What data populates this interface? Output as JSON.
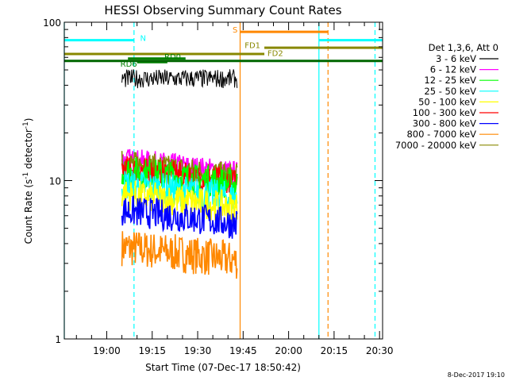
{
  "chart_data": {
    "type": "line",
    "title": "HESSI Observing Summary Count Rates",
    "xlabel": "Start Time (07-Dec-17 18:50:42)",
    "ylabel": "Count Rate (s",
    "ylabel_sup": "-1",
    "ylabel_tail": " detector",
    "ylabel_sup2": "-1",
    "ylabel_close": ")",
    "y_scale": "log",
    "ylim": [
      1,
      100
    ],
    "y_tick_labels": [
      {
        "value": 1,
        "label": "1"
      },
      {
        "value": 10,
        "label": "10"
      },
      {
        "value": 100,
        "label": "100"
      }
    ],
    "xlim_minutes": [
      -14,
      91
    ],
    "x_tick_labels": [
      {
        "t": 0,
        "label": "19:00"
      },
      {
        "t": 15,
        "label": "19:15"
      },
      {
        "t": 30,
        "label": "19:30"
      },
      {
        "t": 45,
        "label": "19:45"
      },
      {
        "t": 60,
        "label": "20:00"
      },
      {
        "t": 75,
        "label": "20:15"
      },
      {
        "t": 90,
        "label": "20:30"
      }
    ],
    "legend_title": "Det 1,3,6, Att 0",
    "series": [
      {
        "name": "3 - 6 keV",
        "color": "#000000",
        "level": 44,
        "spread": 0.06
      },
      {
        "name": "6 - 12 keV",
        "color": "#ff00ff",
        "level": 13.5,
        "spread": 0.08
      },
      {
        "name": "12 - 25 keV",
        "color": "#00ff00",
        "level": 11.5,
        "spread": 0.1
      },
      {
        "name": "25 - 50 keV",
        "color": "#00ffff",
        "level": 9.5,
        "spread": 0.1
      },
      {
        "name": "50 - 100 keV",
        "color": "#ffff00",
        "level": 8.2,
        "spread": 0.1
      },
      {
        "name": "100 - 300 keV",
        "color": "#ff0000",
        "level": 12,
        "spread": 0.08
      },
      {
        "name": "300 - 800 keV",
        "color": "#0000ff",
        "level": 6.5,
        "spread": 0.1
      },
      {
        "name": "800 - 7000 keV",
        "color": "#ff8800",
        "level": 3.8,
        "spread": 0.12
      },
      {
        "name": "7000 - 20000 keV",
        "color": "#888800",
        "level": 13,
        "spread": 0.08
      }
    ],
    "data_window_minutes": [
      5,
      43
    ],
    "vertical_lines": [
      {
        "t": -14,
        "color": "#00ffff",
        "style": "solid"
      },
      {
        "t": 9,
        "color": "#00ffff",
        "style": "dashed"
      },
      {
        "t": 44,
        "color": "#ff8800",
        "style": "solid"
      },
      {
        "t": 70,
        "color": "#00ffff",
        "style": "solid"
      },
      {
        "t": 73,
        "color": "#ff8800",
        "style": "dashed"
      },
      {
        "t": 88.5,
        "color": "#00ffff",
        "style": "dashed"
      }
    ],
    "flag_bars": [
      {
        "label": "N",
        "color": "#00ffff",
        "y": 77,
        "t0": -14,
        "t1": 9,
        "label_t": 11,
        "label_y": 80
      },
      {
        "label": "N",
        "color": "#00ffff",
        "y": 77,
        "t0": 70,
        "t1": 91,
        "label_t": null,
        "label_y": null
      },
      {
        "label": "S",
        "color": "#ff8800",
        "y": 87,
        "t0": 44,
        "t1": 73,
        "label_t": 41.5,
        "label_y": 90
      },
      {
        "label": "FD1",
        "color": "#888800",
        "y": 69,
        "t0": 52,
        "t1": 91,
        "label_t": 45.5,
        "label_y": 72
      },
      {
        "label": "FD2",
        "color": "#888800",
        "y": 63,
        "t0": -14,
        "t1": 52,
        "label_t": 53,
        "label_y": 64
      },
      {
        "label": "RD0",
        "color": "#008000",
        "y": 59,
        "t0": 7,
        "t1": 26,
        "label_t": 19,
        "label_y": 61
      },
      {
        "label": "RD6",
        "color": "#008000",
        "y": 56,
        "t0": 10,
        "t1": 20,
        "label_t": 4.5,
        "label_y": 55
      },
      {
        "label": "",
        "color": "#006600",
        "y": 57,
        "t0": -14,
        "t1": 91,
        "label_t": null,
        "label_y": null
      }
    ]
  },
  "timestamp": "8-Dec-2017 19:10"
}
